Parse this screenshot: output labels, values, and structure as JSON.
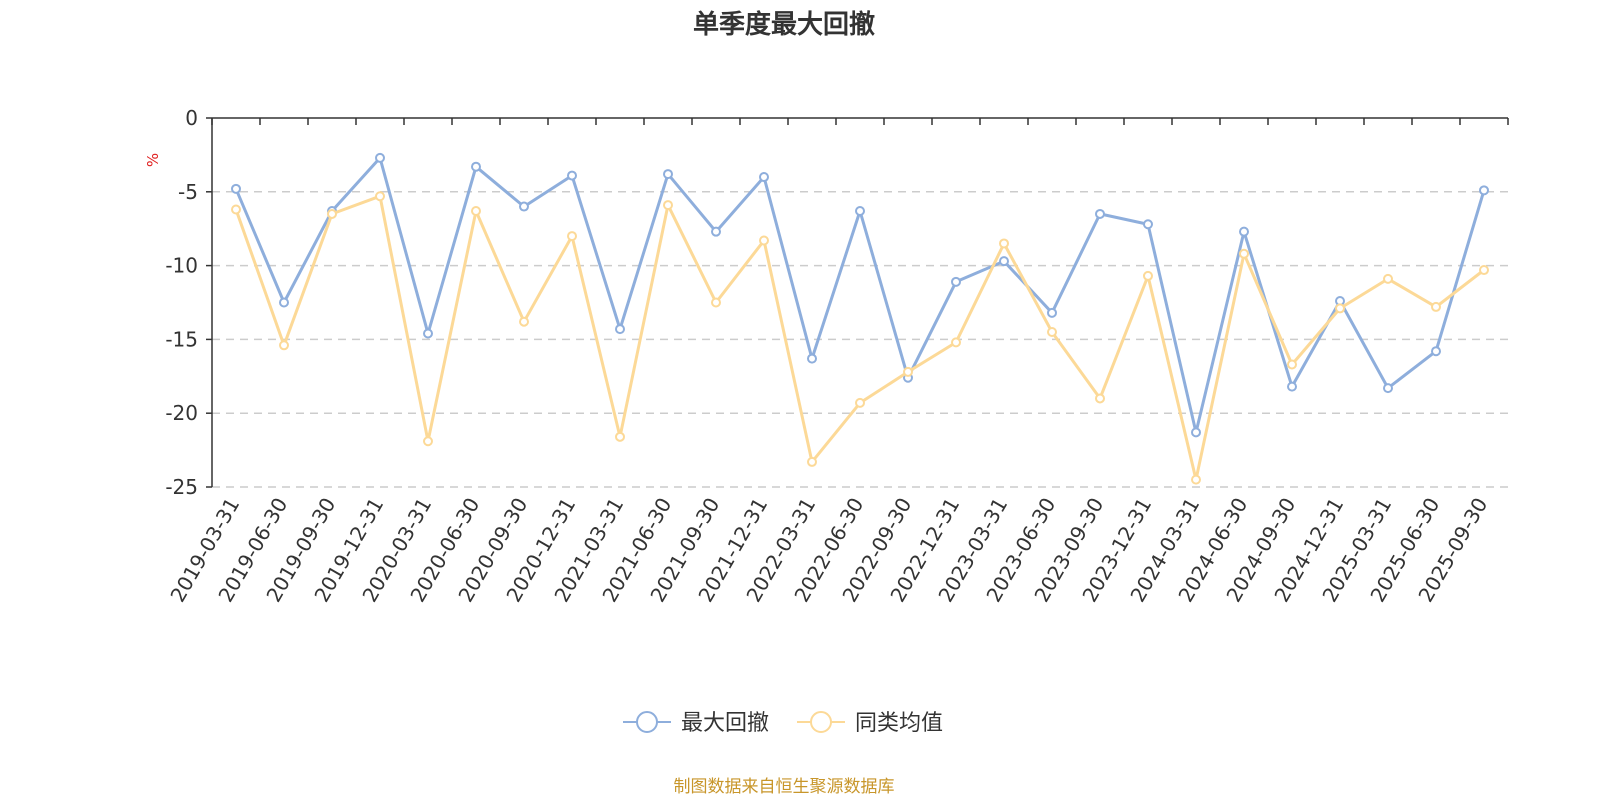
{
  "chart_data": {
    "type": "line",
    "title": "单季度最大回撤",
    "ylabel": "%",
    "ylim": [
      -25,
      0
    ],
    "yticks": [
      0,
      -5,
      -10,
      -15,
      -20,
      -25
    ],
    "grid": true,
    "legend_position": "bottom",
    "categories": [
      "2019-03-31",
      "2019-06-30",
      "2019-09-30",
      "2019-12-31",
      "2020-03-31",
      "2020-06-30",
      "2020-09-30",
      "2020-12-31",
      "2021-03-31",
      "2021-06-30",
      "2021-09-30",
      "2021-12-31",
      "2022-03-31",
      "2022-06-30",
      "2022-09-30",
      "2022-12-31",
      "2023-03-31",
      "2023-06-30",
      "2023-09-30",
      "2023-12-31",
      "2024-03-31",
      "2024-06-30",
      "2024-09-30",
      "2024-12-31",
      "2025-03-31",
      "2025-06-30",
      "2025-09-30"
    ],
    "series": [
      {
        "name": "最大回撤",
        "color": "#8eaedc",
        "values": [
          -4.8,
          -12.5,
          -6.3,
          -2.7,
          -14.6,
          -3.3,
          -6.0,
          -3.9,
          -14.3,
          -3.8,
          -7.7,
          -4.0,
          -16.3,
          -6.3,
          -17.6,
          -11.1,
          -9.7,
          -13.2,
          -6.5,
          -7.2,
          -21.3,
          -7.7,
          -18.2,
          -12.4,
          -18.3,
          -15.8,
          -4.9
        ]
      },
      {
        "name": "同类均值",
        "color": "#fcd997",
        "values": [
          -6.2,
          -15.4,
          -6.5,
          -5.3,
          -21.9,
          -6.3,
          -13.8,
          -8.0,
          -21.6,
          -5.9,
          -12.5,
          -8.3,
          -23.3,
          -19.3,
          -17.2,
          -15.2,
          -8.5,
          -14.5,
          -19.0,
          -10.7,
          -24.5,
          -9.2,
          -16.7,
          -12.9,
          -10.9,
          -12.8,
          -10.3
        ]
      }
    ]
  },
  "source": "制图数据来自恒生聚源数据库"
}
